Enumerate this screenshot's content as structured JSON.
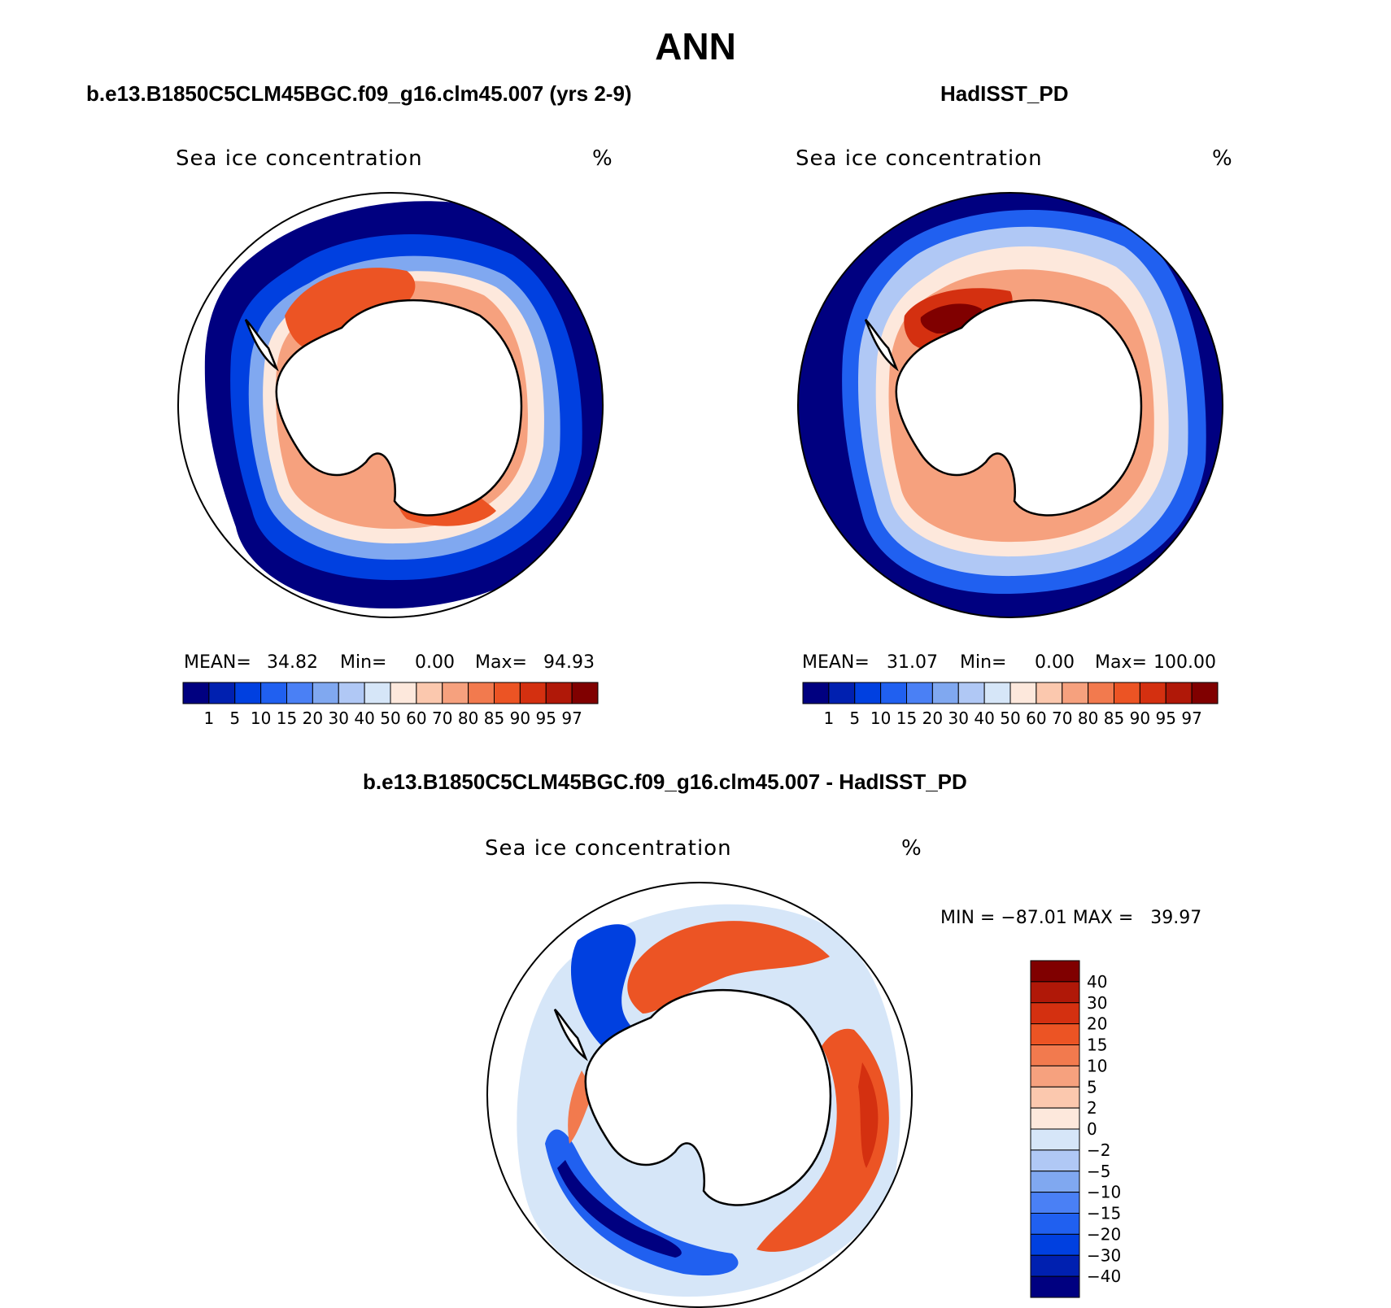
{
  "title": "ANN",
  "colors": {
    "abs": [
      "#000080",
      "#0020b0",
      "#0040e0",
      "#2060f0",
      "#4a80f5",
      "#80a8f0",
      "#b0c8f5",
      "#d6e6f8",
      "#fde8dc",
      "#fbc8ae",
      "#f6a17e",
      "#f27a4e",
      "#ec5424",
      "#d43010",
      "#b01808",
      "#800000"
    ],
    "diff": [
      "#000080",
      "#0020b0",
      "#0040e0",
      "#2060f0",
      "#4a80f5",
      "#80a8f0",
      "#b0c8f5",
      "#d6e6f8",
      "#fde8dc",
      "#fbc8ae",
      "#f6a17e",
      "#f27a4e",
      "#ec5424",
      "#d43010",
      "#b01808",
      "#800000"
    ]
  },
  "panels": {
    "model": {
      "title": "b.e13.B1850C5CLM45BGC.f09_g16.clm45.007 (yrs 2-9)",
      "field": "Sea ice concentration",
      "units": "%",
      "mean_label": "MEAN=",
      "mean": "34.82",
      "min_label": "Min=",
      "min": "0.00",
      "max_label": "Max=",
      "max": "94.93"
    },
    "obs": {
      "title": "HadISST_PD",
      "field": "Sea ice concentration",
      "units": "%",
      "mean_label": "MEAN=",
      "mean": "31.07",
      "min_label": "Min=",
      "min": "0.00",
      "max_label": "Max=",
      "max": "100.00"
    },
    "diff": {
      "title": "b.e13.B1850C5CLM45BGC.f09_g16.clm45.007 - HadISST_PD",
      "field": "Sea ice concentration",
      "units": "%",
      "minmax": "MIN = −87.01 MAX =   39.97"
    }
  },
  "abs_levels": [
    "1",
    "5",
    "10",
    "15",
    "20",
    "30",
    "40",
    "50",
    "60",
    "70",
    "80",
    "85",
    "90",
    "95",
    "97"
  ],
  "diff_levels": [
    "40",
    "30",
    "20",
    "15",
    "10",
    "5",
    "2",
    "0",
    "−2",
    "−5",
    "−10",
    "−15",
    "−20",
    "−30",
    "−40"
  ]
}
